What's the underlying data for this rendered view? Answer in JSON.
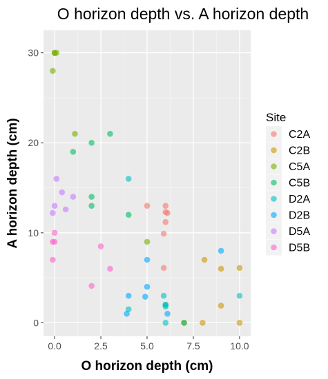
{
  "chart_data": {
    "type": "scatter",
    "title": "O horizon depth vs. A horizon depth",
    "xlabel": "O horizon depth (cm)",
    "ylabel": "A horizon depth (cm)",
    "xlim": [
      -0.6,
      10.6
    ],
    "ylim": [
      -1.5,
      32.5
    ],
    "x_ticks": [
      0,
      2.5,
      5,
      7.5,
      10
    ],
    "x_tick_labels": [
      "0.0",
      "2.5",
      "5.0",
      "7.5",
      "10.0"
    ],
    "y_ticks": [
      0,
      10,
      20,
      30
    ],
    "y_tick_labels": [
      "0",
      "10",
      "20",
      "30"
    ],
    "grid": true,
    "legend_title": "Site",
    "legend_position": "right",
    "series": [
      {
        "name": "C2A",
        "color": "#F8766D",
        "points": [
          [
            5,
            13
          ],
          [
            6,
            13
          ],
          [
            6,
            12.3
          ],
          [
            6,
            11.2
          ],
          [
            5.9,
            9.9
          ],
          [
            6.1,
            12.2
          ],
          [
            5.9,
            6.1
          ]
        ]
      },
      {
        "name": "C2B",
        "color": "#CD9600",
        "points": [
          [
            7,
            0
          ],
          [
            8,
            0
          ],
          [
            8.1,
            7
          ],
          [
            9,
            6
          ],
          [
            10,
            6.1
          ],
          [
            9,
            1.9
          ],
          [
            10,
            0
          ]
        ]
      },
      {
        "name": "C5A",
        "color": "#7CAE00",
        "points": [
          [
            0,
            30
          ],
          [
            0.1,
            30
          ],
          [
            0,
            30
          ],
          [
            -0.1,
            28
          ],
          [
            1.1,
            21
          ],
          [
            5,
            9
          ]
        ]
      },
      {
        "name": "C5B",
        "color": "#00BE67",
        "points": [
          [
            1,
            19
          ],
          [
            2,
            20
          ],
          [
            3,
            21
          ],
          [
            2,
            14
          ],
          [
            2,
            13
          ],
          [
            4,
            12
          ],
          [
            6,
            2
          ],
          [
            7,
            0
          ]
        ]
      },
      {
        "name": "D2A",
        "color": "#00BFC4",
        "points": [
          [
            4,
            16
          ],
          [
            4,
            1.5
          ],
          [
            6,
            2
          ],
          [
            6,
            0
          ],
          [
            10,
            3
          ],
          [
            5.9,
            3
          ],
          [
            6,
            1.8
          ]
        ]
      },
      {
        "name": "D2B",
        "color": "#00A9FF",
        "points": [
          [
            4,
            3
          ],
          [
            3.9,
            1
          ],
          [
            5,
            7
          ],
          [
            5,
            4
          ],
          [
            4.9,
            2.9
          ],
          [
            6.1,
            1
          ],
          [
            9,
            8
          ]
        ]
      },
      {
        "name": "D5A",
        "color": "#C77CFF",
        "points": [
          [
            0.1,
            16
          ],
          [
            0.4,
            14.5
          ],
          [
            1,
            14
          ],
          [
            0,
            13
          ],
          [
            0.6,
            12.6
          ],
          [
            -0.1,
            12.2
          ]
        ]
      },
      {
        "name": "D5B",
        "color": "#FF61CC",
        "points": [
          [
            0,
            10
          ],
          [
            0,
            9
          ],
          [
            -0.1,
            9
          ],
          [
            2.5,
            8.5
          ],
          [
            -0.1,
            7
          ],
          [
            3,
            6
          ],
          [
            2,
            4.1
          ]
        ]
      }
    ]
  }
}
